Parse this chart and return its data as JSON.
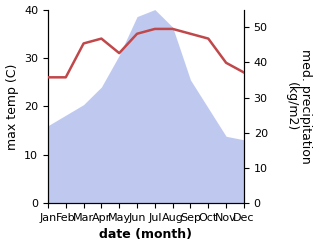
{
  "months": [
    "Jan",
    "Feb",
    "Mar",
    "Apr",
    "May",
    "Jun",
    "Jul",
    "Aug",
    "Sep",
    "Oct",
    "Nov",
    "Dec"
  ],
  "temperature": [
    26,
    26,
    33,
    34,
    31,
    35,
    36,
    36,
    35,
    34,
    29,
    27
  ],
  "precipitation": [
    22,
    25,
    28,
    33,
    42,
    53,
    55,
    50,
    35,
    27,
    19,
    18
  ],
  "temp_color": "#c0474a",
  "precip_color": "#b8c4ee",
  "temp_ylim": [
    0,
    40
  ],
  "precip_ylim": [
    0,
    55
  ],
  "left_yticks": [
    0,
    10,
    20,
    30,
    40
  ],
  "right_yticks": [
    0,
    10,
    20,
    30,
    40,
    50
  ],
  "xlabel": "date (month)",
  "ylabel_left": "max temp (C)",
  "ylabel_right": "med. precipitation\n(kg/m2)",
  "label_fontsize": 9,
  "tick_fontsize": 8
}
